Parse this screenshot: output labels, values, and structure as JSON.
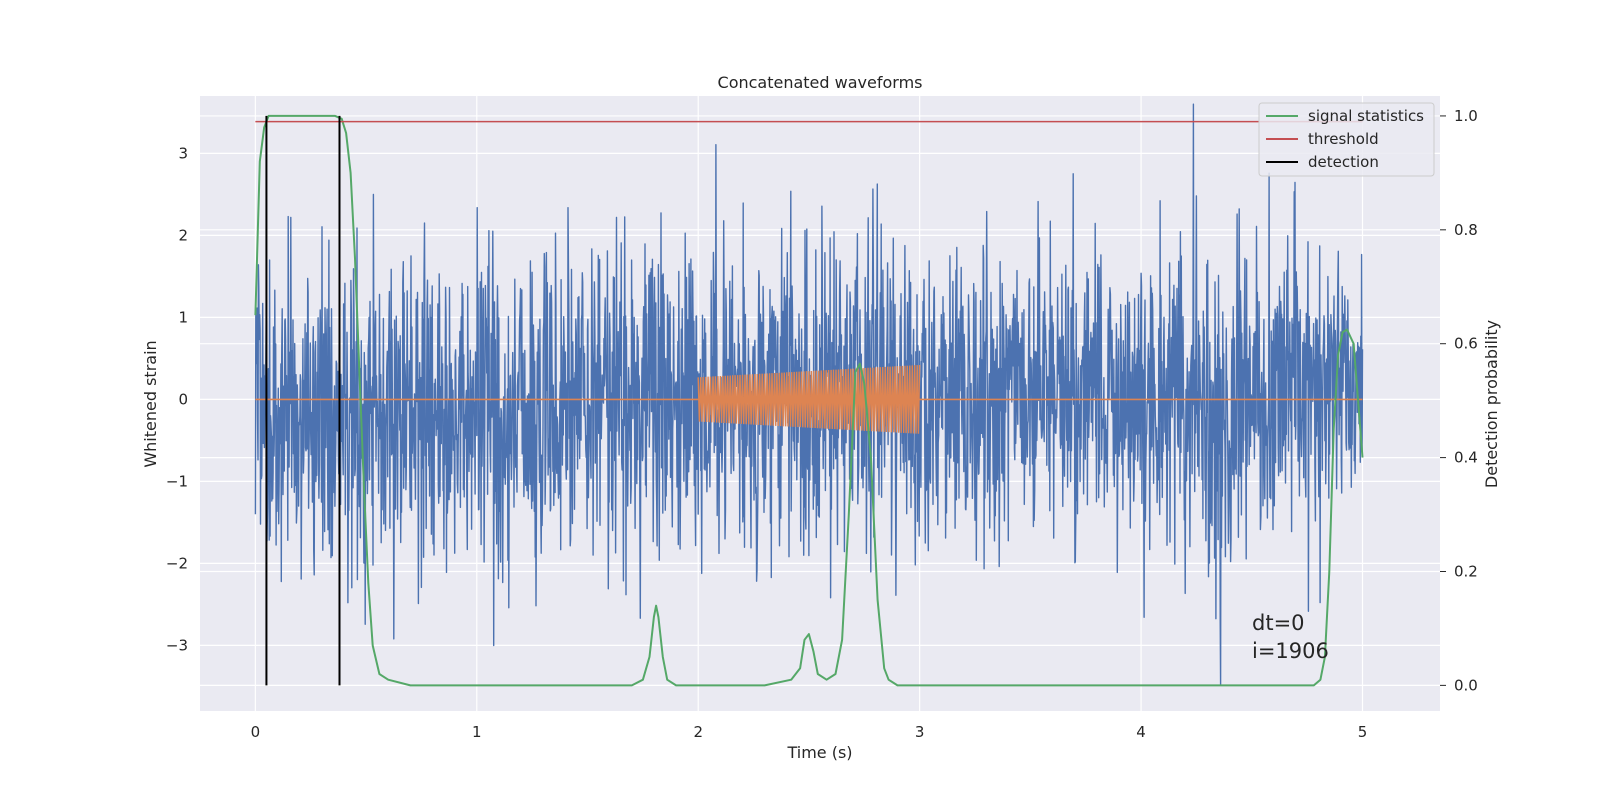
{
  "chart_data": {
    "type": "line",
    "title": "Concatenated waveforms",
    "xlabel": "Time (s)",
    "ylabel": "Whitened strain",
    "y2label": "Detection probability",
    "xlim": [
      -0.25,
      5.35
    ],
    "ylim": [
      -3.8,
      3.7
    ],
    "y2lim": [
      -0.045,
      1.035
    ],
    "xticks": [
      0,
      1,
      2,
      3,
      4,
      5
    ],
    "yticks": [
      -3,
      -2,
      -1,
      0,
      1,
      2,
      3
    ],
    "y2ticks": [
      0.0,
      0.2,
      0.4,
      0.6,
      0.8,
      1.0
    ],
    "xtick_labels": [
      "0",
      "1",
      "2",
      "3",
      "4",
      "5"
    ],
    "ytick_labels": [
      "−3",
      "−2",
      "−1",
      "0",
      "1",
      "2",
      "3"
    ],
    "y2tick_labels": [
      "0.0",
      "0.2",
      "0.4",
      "0.6",
      "0.8",
      "1.0"
    ],
    "grid": true,
    "background": "#eaeaf2",
    "legend_position": "top-right",
    "legend": [
      {
        "label": "signal statistics",
        "color": "#55a868"
      },
      {
        "label": "threshold",
        "color": "#c44e52"
      },
      {
        "label": "detection",
        "color": "#000000"
      }
    ],
    "strain": {
      "color": "#4c72b0",
      "x_range": [
        0,
        5
      ],
      "sample_count": 2560,
      "amplitude_envelope": [
        -3.5,
        3.6
      ],
      "typical_extent": [
        -1.6,
        1.6
      ]
    },
    "injected_waveform": {
      "color": "#dd8452",
      "x_range": [
        2.0,
        3.0
      ],
      "amplitude_start": 0.27,
      "amplitude_end": 0.42,
      "baseline": 0
    },
    "series": [
      {
        "name": "signal statistics",
        "axis": "right",
        "x": [
          0.0,
          0.02,
          0.04,
          0.06,
          0.08,
          0.12,
          0.2,
          0.3,
          0.36,
          0.39,
          0.41,
          0.43,
          0.45,
          0.47,
          0.49,
          0.51,
          0.53,
          0.56,
          0.6,
          0.7,
          1.0,
          1.5,
          1.7,
          1.75,
          1.78,
          1.8,
          1.81,
          1.82,
          1.84,
          1.86,
          1.9,
          2.0,
          2.3,
          2.42,
          2.46,
          2.48,
          2.5,
          2.52,
          2.54,
          2.58,
          2.62,
          2.65,
          2.68,
          2.71,
          2.73,
          2.75,
          2.78,
          2.81,
          2.84,
          2.86,
          2.9,
          3.0,
          4.0,
          4.78,
          4.81,
          4.83,
          4.85,
          4.87,
          4.89,
          4.91,
          4.93,
          4.96,
          4.98,
          5.0
        ],
        "values": [
          0.65,
          0.92,
          0.98,
          1.0,
          1.0,
          1.0,
          1.0,
          1.0,
          1.0,
          0.995,
          0.97,
          0.9,
          0.75,
          0.55,
          0.35,
          0.18,
          0.07,
          0.02,
          0.01,
          0.0,
          0.0,
          0.0,
          0.0,
          0.01,
          0.05,
          0.12,
          0.14,
          0.12,
          0.05,
          0.01,
          0.0,
          0.0,
          0.0,
          0.01,
          0.03,
          0.08,
          0.09,
          0.06,
          0.02,
          0.01,
          0.02,
          0.08,
          0.3,
          0.55,
          0.565,
          0.53,
          0.4,
          0.15,
          0.03,
          0.01,
          0.0,
          0.0,
          0.0,
          0.0,
          0.01,
          0.05,
          0.2,
          0.45,
          0.58,
          0.62,
          0.625,
          0.6,
          0.5,
          0.4
        ]
      },
      {
        "name": "threshold",
        "axis": "right",
        "x": [
          0,
          5
        ],
        "values": [
          0.99,
          0.99
        ]
      }
    ],
    "detections": [
      0.05,
      0.38
    ],
    "annotations": [
      "dt=0",
      "i=1906"
    ]
  }
}
